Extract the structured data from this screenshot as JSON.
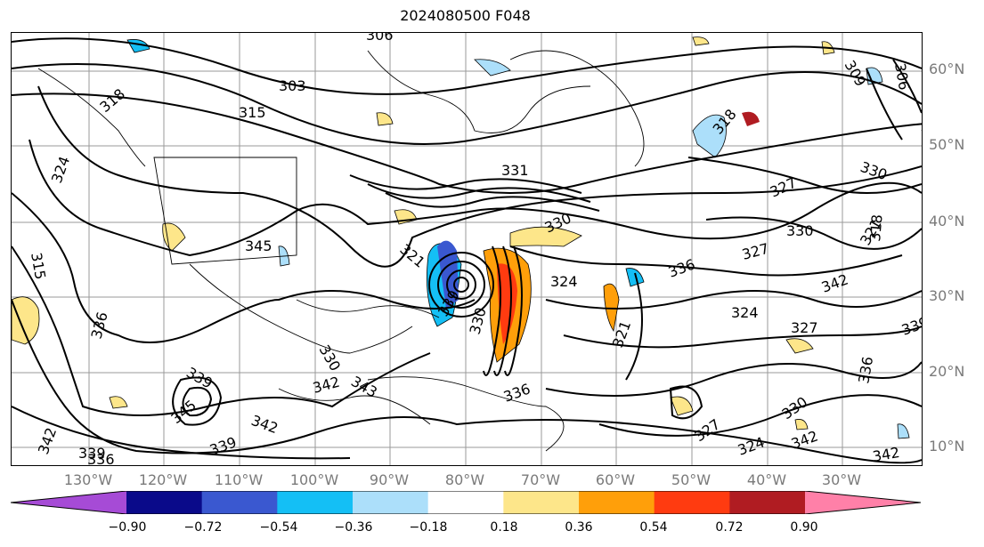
{
  "title": "2024080500 F048",
  "map": {
    "lat_labels": [
      "60°N",
      "50°N",
      "40°N",
      "30°N",
      "20°N",
      "10°N"
    ],
    "lon_labels": [
      "130°W",
      "120°W",
      "110°W",
      "100°W",
      "90°W",
      "80°W",
      "70°W",
      "60°W",
      "50°W",
      "40°W",
      "30°W"
    ],
    "contour_labels": [
      "306",
      "303",
      "315",
      "318",
      "324",
      "315",
      "336",
      "339",
      "342",
      "345",
      "339",
      "342",
      "345",
      "339",
      "336",
      "342",
      "343",
      "330",
      "321",
      "339",
      "330",
      "336",
      "324",
      "330",
      "327",
      "330",
      "330",
      "336",
      "327",
      "324",
      "327",
      "321",
      "318",
      "330",
      "327",
      "342",
      "324",
      "342",
      "309",
      "306",
      "318",
      "321",
      "339",
      "342",
      "336",
      "331"
    ]
  },
  "colorbar": {
    "ticks": [
      "−0.90",
      "−0.72",
      "−0.54",
      "−0.36",
      "−0.18",
      "0.18",
      "0.36",
      "0.54",
      "0.72",
      "0.90"
    ],
    "colors": [
      "#a64bd6",
      "#0a0a8a",
      "#3a58d0",
      "#14bff5",
      "#acdffa",
      "#ffffff",
      "#fde68a",
      "#ff9f0a",
      "#ff3b10",
      "#b01c22",
      "#ff80a8"
    ]
  }
}
